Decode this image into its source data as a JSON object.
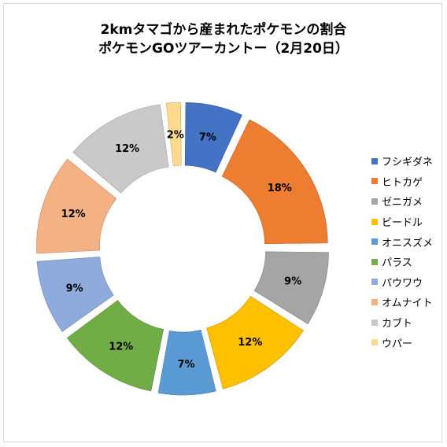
{
  "chart_data": {
    "type": "pie",
    "style": "doughnut-exploded",
    "title": [
      "2kmタマゴから産まれたポケモンの割合",
      "ポケモンGOツアーカントー（2月20日）"
    ],
    "legend_position": "right",
    "slices": [
      {
        "name": "フシギダネ",
        "value": 7,
        "label": "7%",
        "color": "#4472c4"
      },
      {
        "name": "ヒトカゲ",
        "value": 18,
        "label": "18%",
        "color": "#ed7d31"
      },
      {
        "name": "ゼニガメ",
        "value": 9,
        "label": "9%",
        "color": "#a5a5a5"
      },
      {
        "name": "ビードル",
        "value": 12,
        "label": "12%",
        "color": "#ffc000"
      },
      {
        "name": "オニスズメ",
        "value": 7,
        "label": "7%",
        "color": "#5b9bd5"
      },
      {
        "name": "パラス",
        "value": 12,
        "label": "12%",
        "color": "#70ad47"
      },
      {
        "name": "パウワウ",
        "value": 9,
        "label": "9%",
        "color": "#8faadc"
      },
      {
        "name": "オムナイト",
        "value": 12,
        "label": "12%",
        "color": "#f4b183"
      },
      {
        "name": "カブト",
        "value": 12,
        "label": "12%",
        "color": "#c9c9c9"
      },
      {
        "name": "ウパー",
        "value": 2,
        "label": "2%",
        "color": "#ffd98e"
      }
    ]
  }
}
